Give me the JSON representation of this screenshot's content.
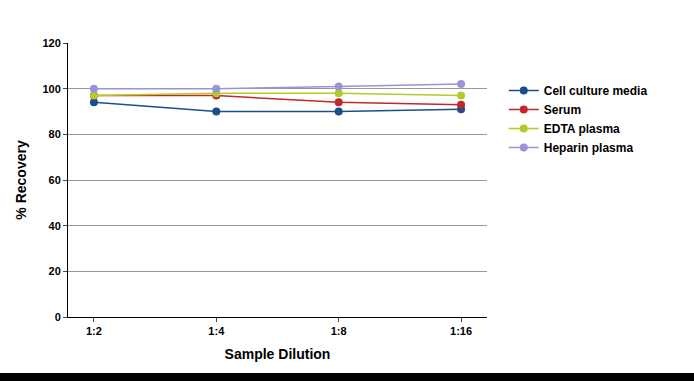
{
  "chart_data": {
    "type": "line",
    "x_label": "Sample Dilution",
    "y_label": "% Recovery",
    "categories": [
      "1:2",
      "1:4",
      "1:8",
      "1:16"
    ],
    "series": [
      {
        "name": "Cell culture media",
        "color": "#1b4f8a",
        "values": [
          94,
          90,
          90,
          91
        ]
      },
      {
        "name": "Serum",
        "color": "#c0282d",
        "values": [
          97,
          97,
          94,
          93
        ]
      },
      {
        "name": "EDTA plasma",
        "color": "#b5c92b",
        "values": [
          97,
          98,
          98,
          97
        ]
      },
      {
        "name": "Heparin plasma",
        "color": "#9a94d6",
        "values": [
          100,
          100,
          101,
          102
        ]
      }
    ],
    "ylim": [
      0,
      120
    ],
    "yticks": [
      0,
      20,
      40,
      60,
      80,
      100,
      120
    ],
    "grid": true,
    "legend": "right",
    "marker": "circle",
    "line_style": "solid"
  }
}
